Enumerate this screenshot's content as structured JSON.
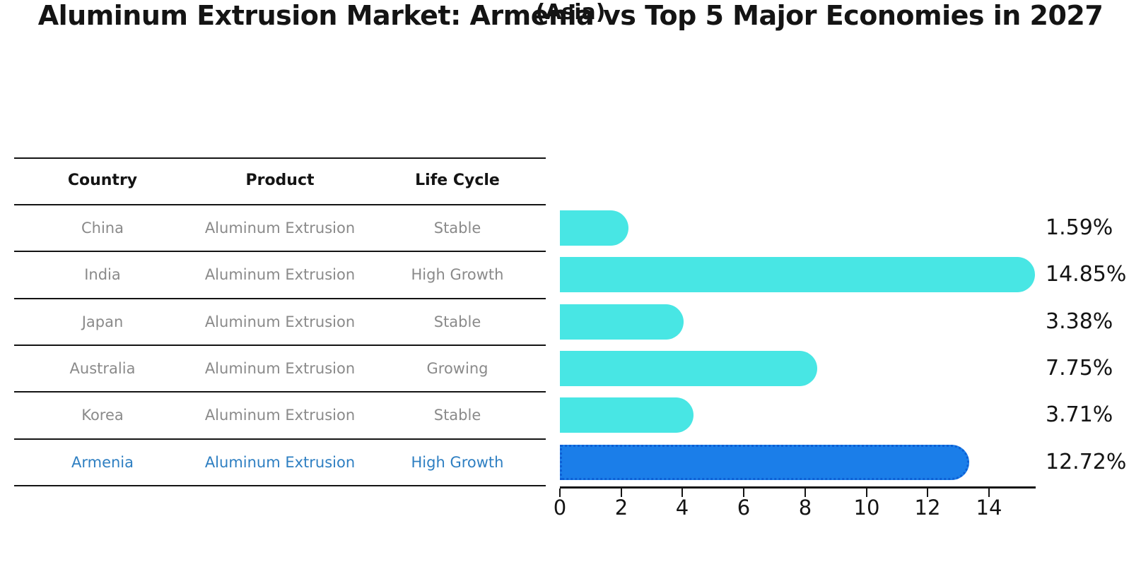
{
  "title": "Aluminum Extrusion Market: Armenia vs Top 5 Major Economies in 2027",
  "subtitle": "(Asia)",
  "table": {
    "headers": [
      "Country",
      "Product",
      "Life Cycle"
    ],
    "rows": [
      {
        "country": "China",
        "product": "Aluminum Extrusion",
        "life_cycle": "Stable"
      },
      {
        "country": "India",
        "product": "Aluminum Extrusion",
        "life_cycle": "High Growth"
      },
      {
        "country": "Japan",
        "product": "Aluminum Extrusion",
        "life_cycle": "Stable"
      },
      {
        "country": "Australia",
        "product": "Aluminum Extrusion",
        "life_cycle": "Growing"
      },
      {
        "country": "Korea",
        "product": "Aluminum Extrusion",
        "life_cycle": "Stable"
      },
      {
        "country": "Armenia",
        "product": "Aluminum Extrusion",
        "life_cycle": "High Growth"
      }
    ]
  },
  "chart_data": {
    "type": "bar",
    "orientation": "horizontal",
    "categories": [
      "China",
      "India",
      "Japan",
      "Australia",
      "Korea",
      "Armenia"
    ],
    "values": [
      1.59,
      14.85,
      3.38,
      7.75,
      3.71,
      12.72
    ],
    "value_labels": [
      "1.59%",
      "14.85%",
      "3.38%",
      "7.75%",
      "3.71%",
      "12.72%"
    ],
    "highlight_category": "Armenia",
    "x_ticks": [
      0,
      2,
      4,
      6,
      8,
      10,
      12,
      14
    ],
    "xlim": [
      0,
      15.5
    ],
    "grid": false,
    "legend": "none",
    "title": "Aluminum Extrusion Market: Armenia vs Top 5 Major Economies in 2027",
    "subtitle": "(Asia)",
    "xlabel": "",
    "ylabel": ""
  },
  "colors": {
    "bar": "#48e6e4",
    "highlight_bar": "#1b7ee9",
    "highlight_edge": "#0d5fd4",
    "highlight_text": "#2e7fc2",
    "text_primary": "#141414",
    "text_muted": "#8a8a8a",
    "axis": "#141414",
    "background": "#ffffff"
  }
}
